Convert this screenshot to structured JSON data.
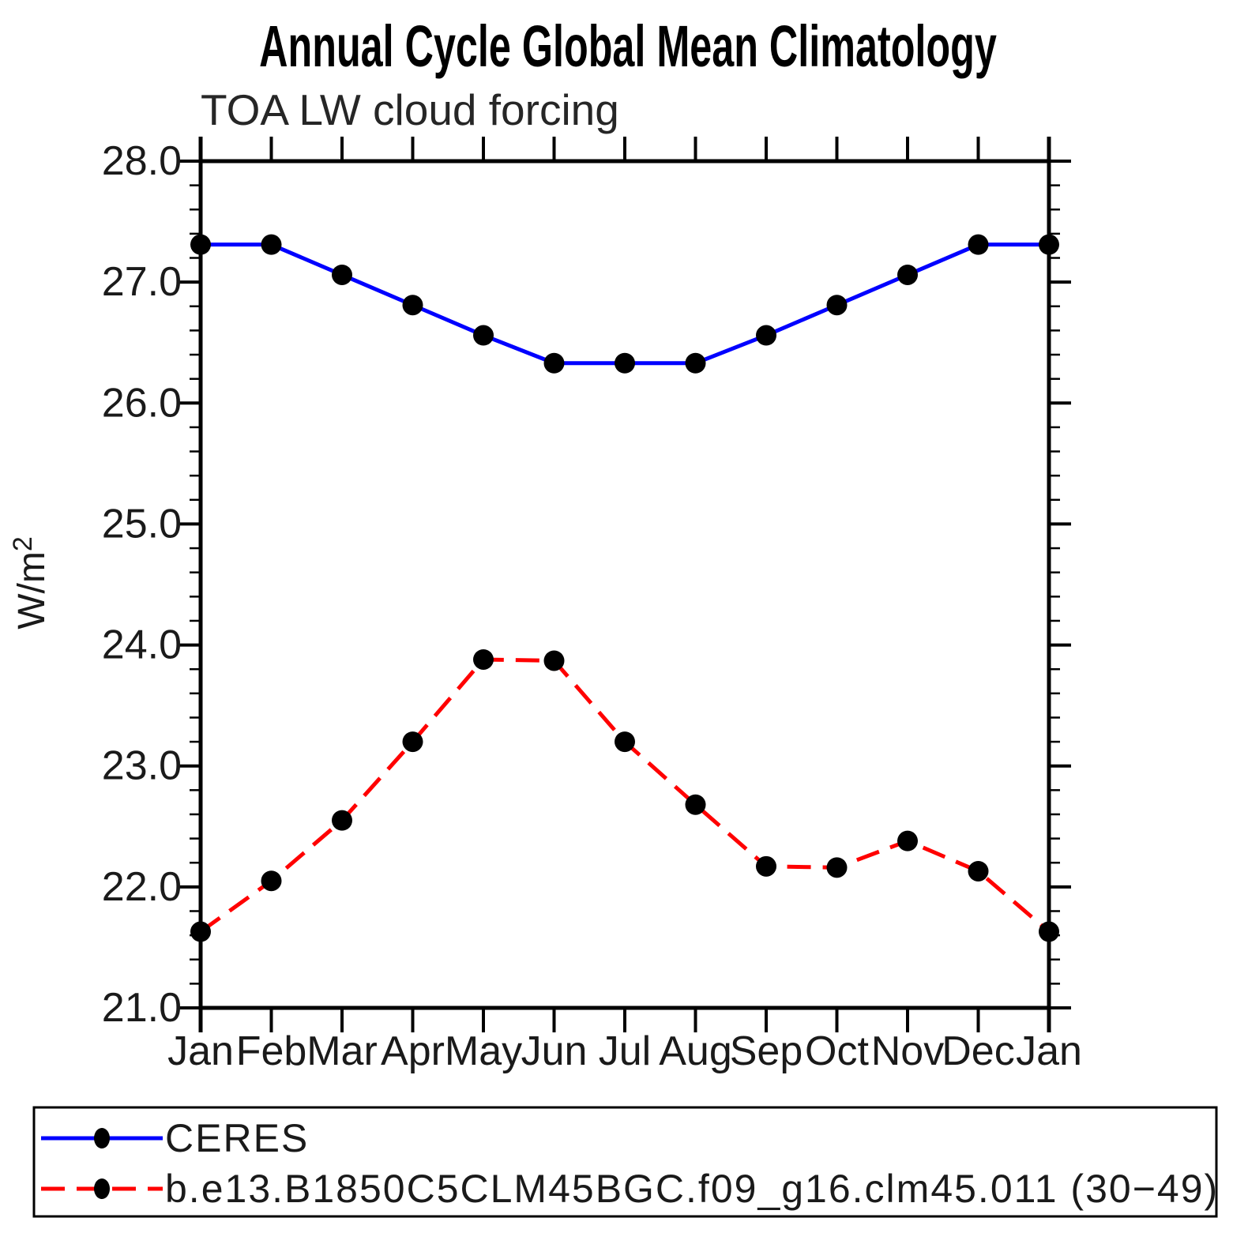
{
  "figure": {
    "title": "Annual Cycle Global Mean Climatology",
    "subtitle": "TOA LW cloud forcing"
  },
  "chart_data": {
    "type": "line",
    "title": "Annual Cycle Global Mean Climatology",
    "subtitle": "TOA LW cloud forcing",
    "xlabel": "",
    "ylabel": "W/m²",
    "categories": [
      "Jan",
      "Feb",
      "Mar",
      "Apr",
      "May",
      "Jun",
      "Jul",
      "Aug",
      "Sep",
      "Oct",
      "Nov",
      "Dec",
      "Jan"
    ],
    "ylim": [
      21.0,
      28.0
    ],
    "y_major_ticks": [
      21.0,
      22.0,
      23.0,
      24.0,
      25.0,
      26.0,
      27.0,
      28.0
    ],
    "y_tick_labels": [
      "21.0",
      "22.0",
      "23.0",
      "24.0",
      "25.0",
      "26.0",
      "27.0",
      "28.0"
    ],
    "y_minor_step": 0.2,
    "grid": false,
    "legend_position": "bottom",
    "axis_color": "#000000",
    "marker_color": "#000000",
    "series": [
      {
        "name": "CERES",
        "color": "#0000ff",
        "style": "solid",
        "marker": "circle",
        "values": [
          27.31,
          27.31,
          27.06,
          26.81,
          26.56,
          26.33,
          26.33,
          26.33,
          26.56,
          26.81,
          27.06,
          27.31,
          27.31
        ]
      },
      {
        "name": "b.e13.B1850C5CLM45BGC.f09_g16.clm45.011 (30−49)",
        "color": "#ff0000",
        "style": "dashed",
        "marker": "circle",
        "values": [
          21.63,
          22.05,
          22.55,
          23.2,
          23.88,
          23.87,
          23.2,
          22.68,
          22.17,
          22.16,
          22.38,
          22.13,
          21.63
        ]
      }
    ]
  }
}
